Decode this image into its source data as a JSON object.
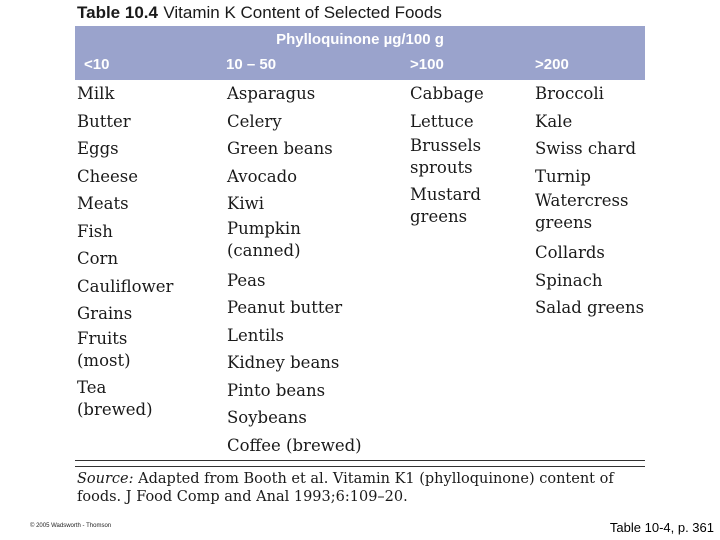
{
  "title": {
    "number": "Table 10.4",
    "text": "Vitamin K Content of Selected Foods"
  },
  "header": {
    "super": "Phylloquinone µg/100 g",
    "columns": [
      "<10",
      "10 – 50",
      ">100",
      ">200"
    ]
  },
  "columns": [
    {
      "items": [
        "Milk",
        "Butter",
        "Eggs",
        "Cheese",
        "Meats",
        "Fish",
        "Corn",
        "Cauliflower",
        "Grains",
        "Fruits\n(most)",
        "Tea\n(brewed)"
      ]
    },
    {
      "items": [
        "Asparagus",
        "Celery",
        "Green beans",
        "Avocado",
        "Kiwi",
        "Pumpkin\n(canned)",
        "Peas",
        "Peanut butter",
        "Lentils",
        "Kidney beans",
        "Pinto beans",
        "Soybeans",
        "Coffee (brewed)"
      ]
    },
    {
      "items": [
        "Cabbage",
        "Lettuce",
        "Brussels\nsprouts",
        "Mustard\ngreens"
      ]
    },
    {
      "items": [
        "Broccoli",
        "Kale",
        "Swiss chard",
        "Turnip",
        "Watercress\ngreens",
        "Collards",
        "Spinach",
        "Salad greens"
      ]
    }
  ],
  "source": {
    "label": "Source:",
    "text": "Adapted from Booth et al. Vitamin K1 (phylloquinone) content of foods. J Food Comp and Anal 1993;6:109–20."
  },
  "copyright": "© 2005 Wadsworth - Thomson",
  "caption": "Table 10-4, p. 361"
}
